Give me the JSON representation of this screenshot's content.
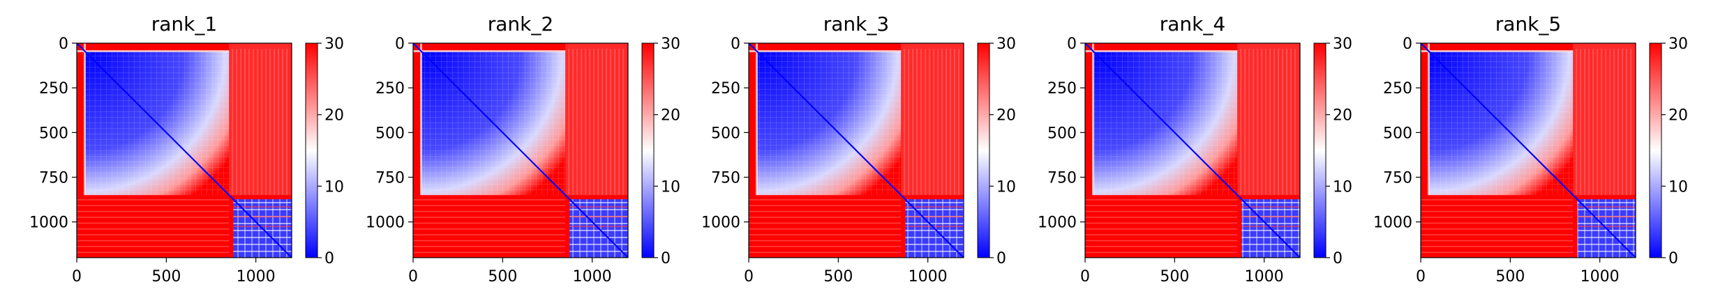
{
  "chart_data": {
    "type": "heatmap",
    "colormap": "bwr",
    "shared": {
      "x_ticks": [
        0,
        500,
        1000
      ],
      "x_tick_labels": [
        "0",
        "500",
        "1000"
      ],
      "y_ticks": [
        0,
        250,
        500,
        750,
        1000
      ],
      "y_tick_labels": [
        "0",
        "250",
        "500",
        "750",
        "1000"
      ],
      "xlim": [
        0,
        1200
      ],
      "ylim": [
        1200,
        0
      ],
      "matrix_size": 1200,
      "block_split": 850,
      "colorbar_range": [
        0,
        30
      ],
      "colorbar_ticks": [
        0,
        10,
        20,
        30
      ],
      "colorbar_tick_labels": [
        "0",
        "10",
        "20",
        "30"
      ]
    },
    "panels": [
      {
        "title": "rank_1"
      },
      {
        "title": "rank_2"
      },
      {
        "title": "rank_3"
      },
      {
        "title": "rank_4"
      },
      {
        "title": "rank_5"
      }
    ]
  }
}
